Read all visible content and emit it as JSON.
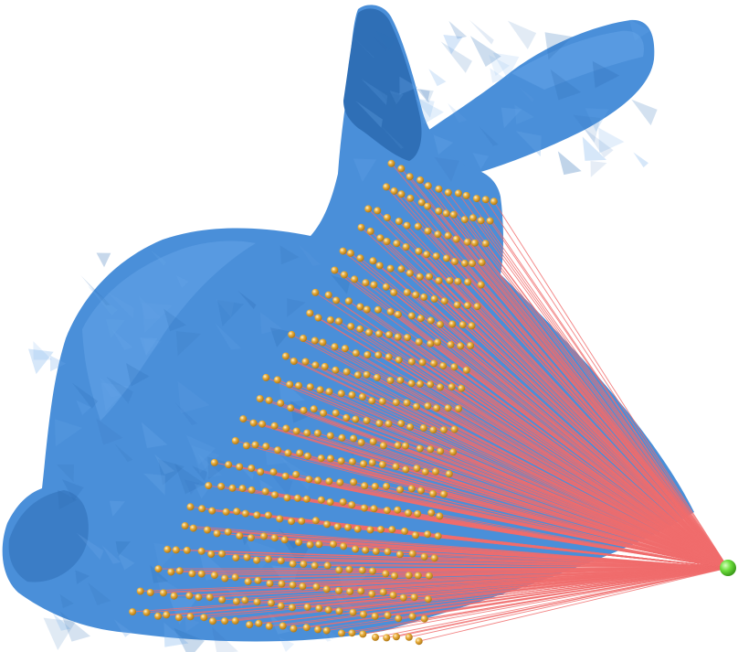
{
  "scene": {
    "background_color": "#ffffff",
    "mesh_color": "#4a8fd9",
    "mesh_shadow_color": "#2f6fb6",
    "mesh_highlight_color": "#6aa8ea",
    "ray_color": "#f06c6c",
    "sample_point_color": "#e8ad3a",
    "source_point_color": "#6cde3c",
    "sample_point_count": 470
  }
}
